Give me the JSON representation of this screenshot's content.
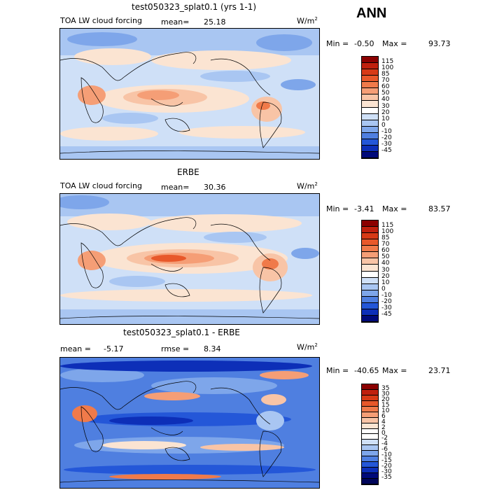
{
  "page": {
    "season_label": "ANN"
  },
  "panels": [
    {
      "title": "test050323_splat0.1 (yrs 1-1)",
      "variable_label": "TOA LW cloud forcing",
      "mean_label": "mean=",
      "mean_value": "25.18",
      "rmse_label": "",
      "rmse_value": "",
      "units": "W/m",
      "units_sup": "2",
      "min_label": "Min =",
      "min_value": "-0.50",
      "max_label": "Max =",
      "max_value": "93.73",
      "levels": [
        "115",
        "100",
        "85",
        "70",
        "60",
        "50",
        "40",
        "30",
        "20",
        "10",
        "0",
        "-10",
        "-20",
        "-30",
        "-45"
      ],
      "colors": [
        "#8b0000",
        "#c0200e",
        "#d73a16",
        "#e8582a",
        "#f07a4a",
        "#f59e76",
        "#f8c4a6",
        "#fbe4d2",
        "#ffffff",
        "#cfe0f7",
        "#a9c6f2",
        "#7ea6ea",
        "#4f7fe0",
        "#2457d8",
        "#0d2fb8",
        "#000a7a"
      ]
    },
    {
      "title": "ERBE",
      "variable_label": "TOA LW cloud forcing",
      "mean_label": "mean=",
      "mean_value": "30.36",
      "rmse_label": "",
      "rmse_value": "",
      "units": "W/m",
      "units_sup": "2",
      "min_label": "Min =",
      "min_value": "-3.41",
      "max_label": "Max =",
      "max_value": "83.57",
      "levels": [
        "115",
        "100",
        "85",
        "70",
        "60",
        "50",
        "40",
        "30",
        "20",
        "10",
        "0",
        "-10",
        "-20",
        "-30",
        "-45"
      ],
      "colors": [
        "#8b0000",
        "#c0200e",
        "#d73a16",
        "#e8582a",
        "#f07a4a",
        "#f59e76",
        "#f8c4a6",
        "#fbe4d2",
        "#ffffff",
        "#cfe0f7",
        "#a9c6f2",
        "#7ea6ea",
        "#4f7fe0",
        "#2457d8",
        "#0d2fb8",
        "#000a7a"
      ]
    },
    {
      "title": "test050323_splat0.1 - ERBE",
      "variable_label": "",
      "mean_label": "mean =",
      "mean_value": "-5.17",
      "rmse_label": "rmse =",
      "rmse_value": "8.34",
      "units": "W/m",
      "units_sup": "2",
      "min_label": "Min =",
      "min_value": "-40.65",
      "max_label": "Max =",
      "max_value": "23.71",
      "levels": [
        "35",
        "30",
        "20",
        "15",
        "10",
        "6",
        "4",
        "2",
        "0",
        "-2",
        "-4",
        "-6",
        "-10",
        "-15",
        "-20",
        "-30",
        "-35"
      ],
      "colors": [
        "#8b0000",
        "#c0200e",
        "#d73a16",
        "#e8582a",
        "#f07a4a",
        "#f59e76",
        "#f8c4a6",
        "#fbe4d2",
        "#ffffff",
        "#ffffff",
        "#cfe0f7",
        "#a9c6f2",
        "#7ea6ea",
        "#4f7fe0",
        "#2457d8",
        "#0d2fb8",
        "#000a7a",
        "#00055a"
      ]
    }
  ]
}
